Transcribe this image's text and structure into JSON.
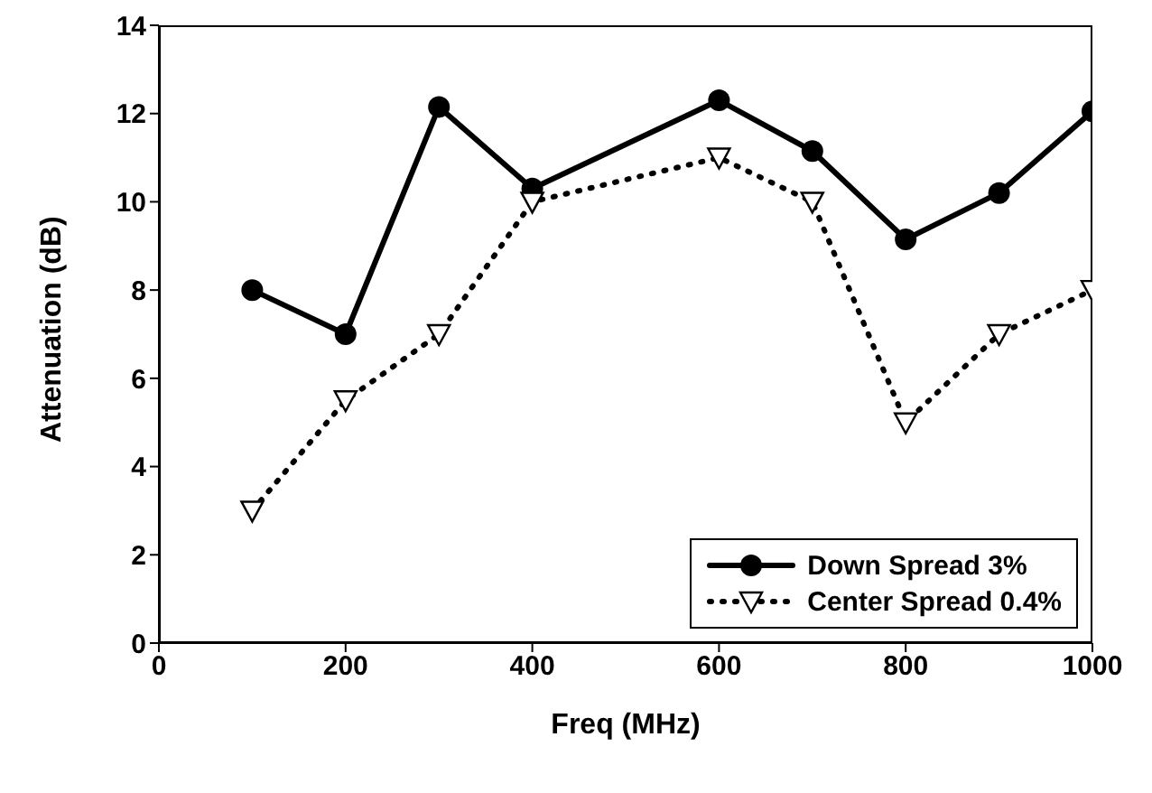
{
  "chart_data": {
    "type": "line",
    "xlabel": "Freq (MHz)",
    "ylabel": "Attenuation (dB)",
    "x": [
      100,
      200,
      300,
      400,
      600,
      700,
      800,
      900,
      1000
    ],
    "series": [
      {
        "name": "Down Spread 3%",
        "color": "#000000",
        "marker": "circle",
        "line_style": "solid",
        "values": [
          8,
          7,
          12.15,
          10.3,
          12.3,
          11.15,
          9.15,
          10.2,
          12.05
        ]
      },
      {
        "name": "Center Spread 0.4%",
        "color": "#000000",
        "marker": "triangle",
        "line_style": "dotted",
        "values": [
          3,
          5.5,
          7,
          10,
          11,
          10,
          5,
          7,
          8
        ]
      }
    ],
    "xlim": [
      0,
      1000
    ],
    "xticks": [
      0,
      200,
      400,
      600,
      800,
      1000
    ],
    "ylim": [
      0,
      14
    ],
    "yticks": [
      0,
      2,
      4,
      6,
      8,
      10,
      12,
      14
    ],
    "grid": false,
    "legend": "bottom right"
  }
}
